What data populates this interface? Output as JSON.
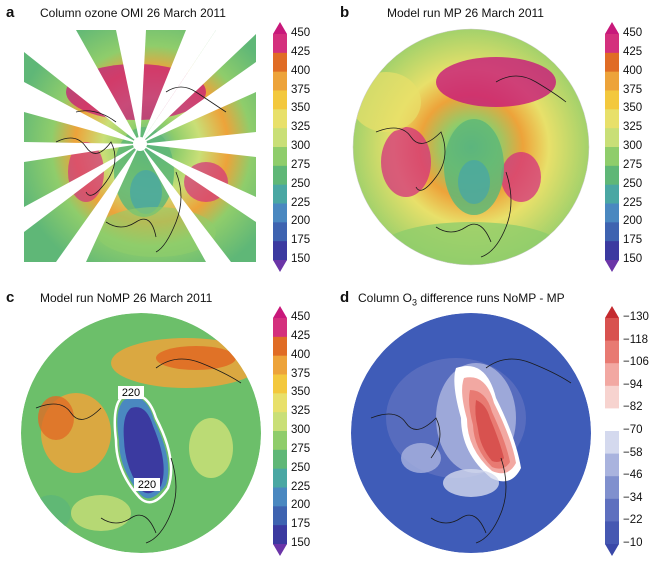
{
  "panels": [
    {
      "letter": "a",
      "title": "Column ozone  OMI 26 March 2011",
      "colorbar": {
        "ticks": [
          "450",
          "425",
          "400",
          "375",
          "350",
          "325",
          "300",
          "275",
          "250",
          "225",
          "200",
          "175",
          "150"
        ],
        "colors": [
          "#c8187a",
          "#d4307d",
          "#e06c25",
          "#eda33a",
          "#f3c83d",
          "#e8e06a",
          "#c9df77",
          "#8fcd6b",
          "#5fb777",
          "#4aa7a3",
          "#4a88c0",
          "#3e63b0",
          "#3b3aa0",
          "#6b35a8"
        ]
      }
    },
    {
      "letter": "b",
      "title": "Model run MP 26 March 2011",
      "colorbar": {
        "ticks": [
          "450",
          "425",
          "400",
          "375",
          "350",
          "325",
          "300",
          "275",
          "250",
          "225",
          "200",
          "175",
          "150"
        ],
        "colors": [
          "#c8187a",
          "#d4307d",
          "#e06c25",
          "#eda33a",
          "#f3c83d",
          "#e8e06a",
          "#c9df77",
          "#8fcd6b",
          "#5fb777",
          "#4aa7a3",
          "#4a88c0",
          "#3e63b0",
          "#3b3aa0",
          "#6b35a8"
        ]
      }
    },
    {
      "letter": "c",
      "title": "Model run NoMP 26 March 2011",
      "contour_labels": [
        "220",
        "220"
      ],
      "colorbar": {
        "ticks": [
          "450",
          "425",
          "400",
          "375",
          "350",
          "325",
          "300",
          "275",
          "250",
          "225",
          "200",
          "175",
          "150"
        ],
        "colors": [
          "#c8187a",
          "#d4307d",
          "#e06c25",
          "#eda33a",
          "#f3c83d",
          "#e8e06a",
          "#c9df77",
          "#8fcd6b",
          "#5fb777",
          "#4aa7a3",
          "#4a88c0",
          "#3e63b0",
          "#3b3aa0",
          "#6b35a8"
        ]
      }
    },
    {
      "letter": "d",
      "title_prefix": "Column O",
      "title_sub": "3",
      "title_suffix": " difference runs NoMP - MP",
      "colorbar": {
        "ticks": [
          "−130",
          "−118",
          "−106",
          "−94",
          "−82",
          "−70",
          "−58",
          "−46",
          "−34",
          "−22",
          "−10"
        ],
        "colors": [
          "#c42a2f",
          "#d8524f",
          "#e87a72",
          "#f2a8a2",
          "#f7d3cf",
          "#ffffff",
          "#d4d9ee",
          "#a9b3de",
          "#8090ce",
          "#5e70bf",
          "#4658b2",
          "#3a48a8"
        ]
      }
    }
  ],
  "colors": {
    "ocean_blue": "#3f5cb8",
    "deep_purple": "#3b2f96",
    "green_bg": "#6cbf6a",
    "coast": "#1a1a1a"
  }
}
